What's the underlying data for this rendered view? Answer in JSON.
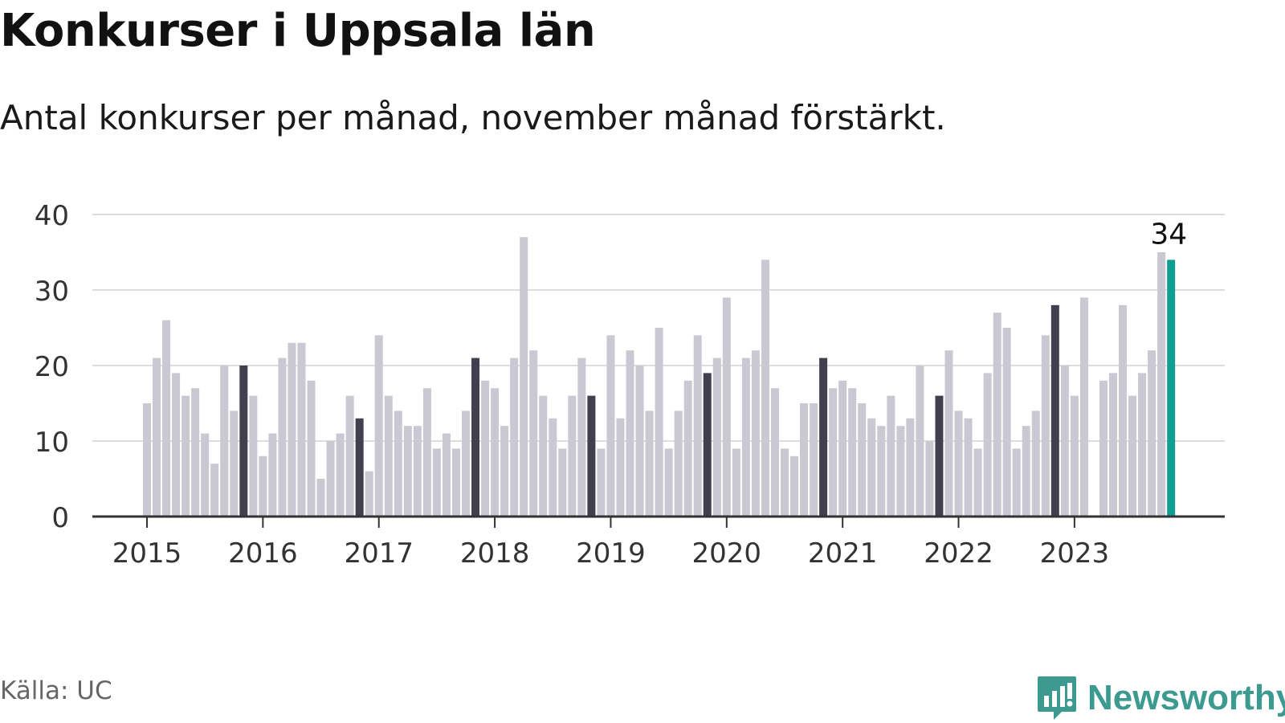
{
  "title": "Konkurser i Uppsala län",
  "subtitle": "Antal konkurser per månad, november månad förstärkt.",
  "source": "Källa: UC",
  "brand": {
    "name": "Newsworthy",
    "color": "#3d9a90"
  },
  "colors": {
    "bar": "#c9c8d3",
    "highlight": "#42404f",
    "latest": "#119e92",
    "grid": "#dddddd",
    "axis": "#333333"
  },
  "chart_data": {
    "type": "bar",
    "ylim": [
      0,
      40
    ],
    "yticks": [
      0,
      10,
      20,
      30,
      40
    ],
    "xtick_labels": [
      "2015",
      "2016",
      "2017",
      "2018",
      "2019",
      "2020",
      "2021",
      "2022",
      "2023"
    ],
    "start_month": "2015-01",
    "series": [
      {
        "values": [
          15,
          21,
          26,
          19,
          16,
          17,
          11,
          7,
          20,
          14,
          20,
          16,
          8,
          11,
          21,
          23,
          23,
          18,
          5,
          10,
          11,
          16,
          13,
          6,
          24,
          16,
          14,
          12,
          12,
          17,
          9,
          11,
          9,
          14,
          21,
          18,
          17,
          12,
          21,
          37,
          22,
          16,
          13,
          9,
          16,
          21,
          16,
          9,
          24,
          13,
          22,
          20,
          14,
          25,
          9,
          14,
          18,
          24,
          19,
          21,
          29,
          9,
          21,
          22,
          34,
          17,
          9,
          8,
          15,
          15,
          21,
          17,
          18,
          17,
          15,
          13,
          12,
          16,
          12,
          13,
          20,
          10,
          16,
          22,
          14,
          13,
          9,
          19,
          27,
          25,
          9,
          12,
          14,
          24,
          28,
          20,
          16,
          29,
          0,
          18,
          19,
          28,
          16,
          19,
          22,
          35,
          34
        ]
      }
    ],
    "highlight": "november",
    "annotation": {
      "label": "34",
      "month": "2023-11"
    },
    "grid": true
  }
}
